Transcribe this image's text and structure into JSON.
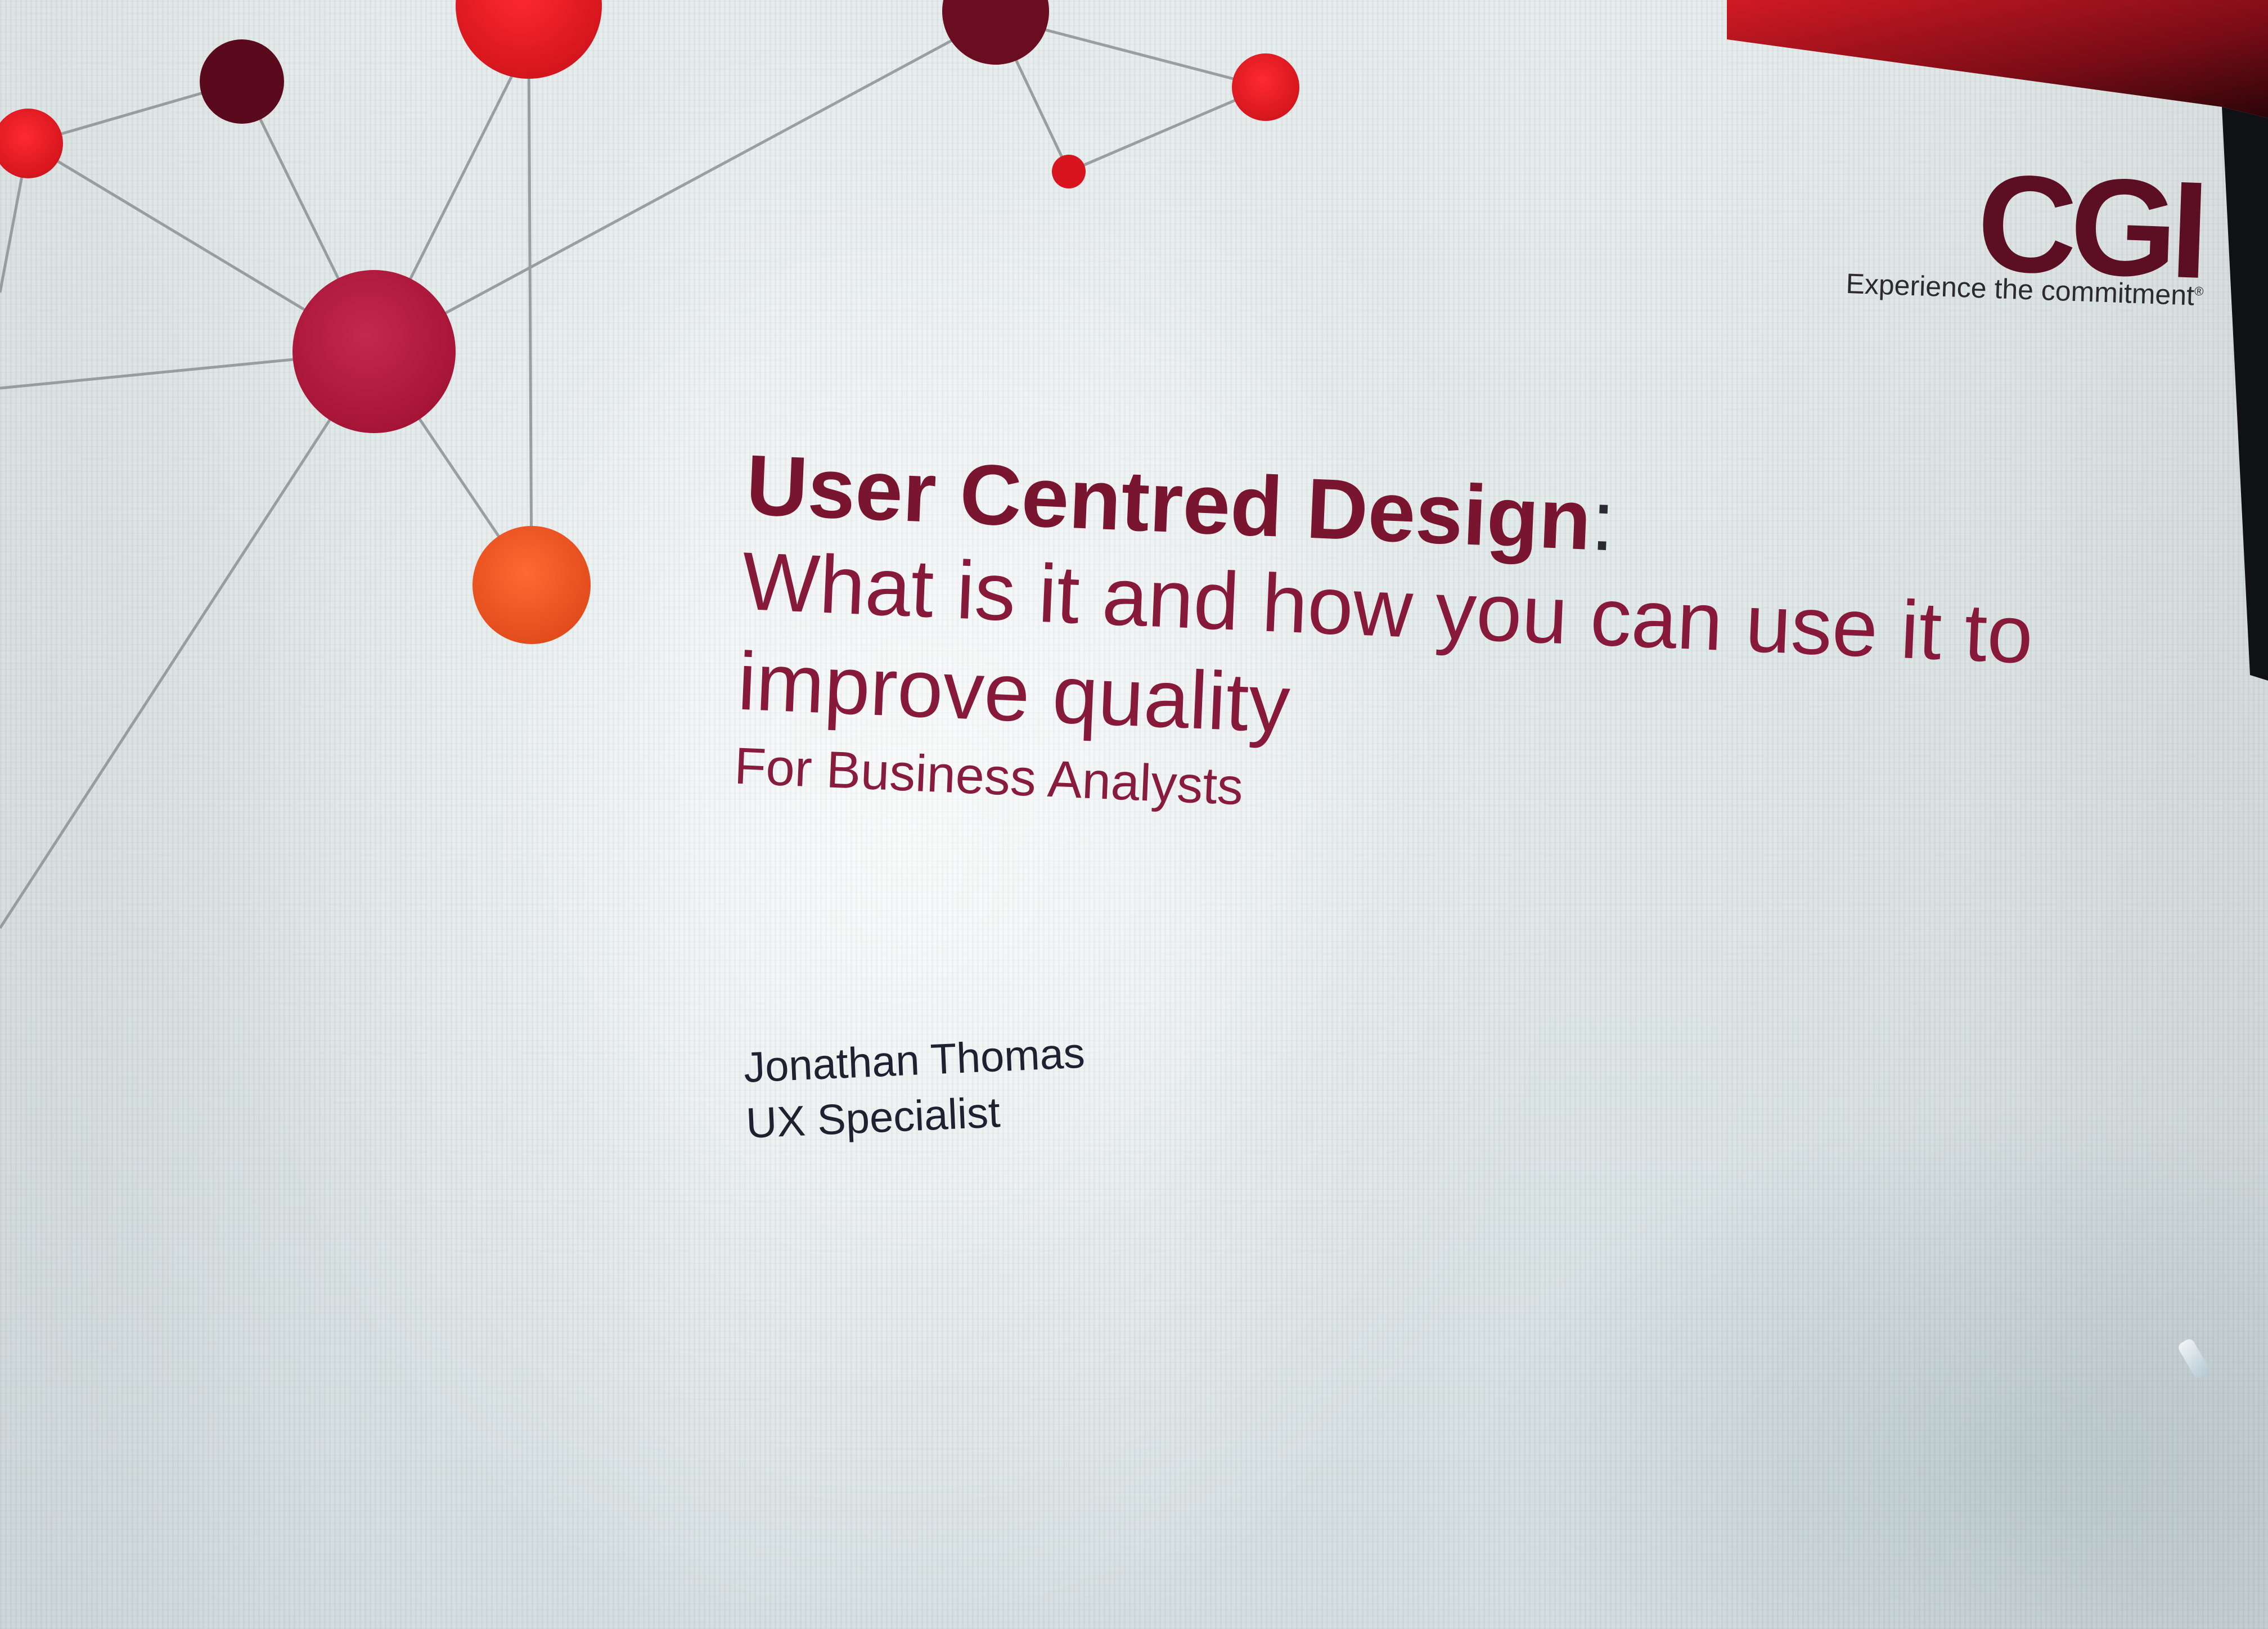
{
  "slide": {
    "logo": {
      "wordmark": "CGI",
      "tagline": "Experience the commitment",
      "trademark": "®"
    },
    "title": {
      "line1": "User Centred Design",
      "colon": ":",
      "line2": "What is it and how you can use it to improve quality",
      "subtitle": "For Business Analysts"
    },
    "presenter": {
      "name": "Jonathan Thomas",
      "role": "UX Specialist"
    }
  },
  "colors": {
    "brand_dark_red": "#5c0f22",
    "title_red": "#7a1530",
    "accent_orange": "#f05a28",
    "accent_red": "#e0252b",
    "body_text": "#1e2230"
  },
  "decor": {
    "network_graphic": "molecule-network-icon"
  }
}
